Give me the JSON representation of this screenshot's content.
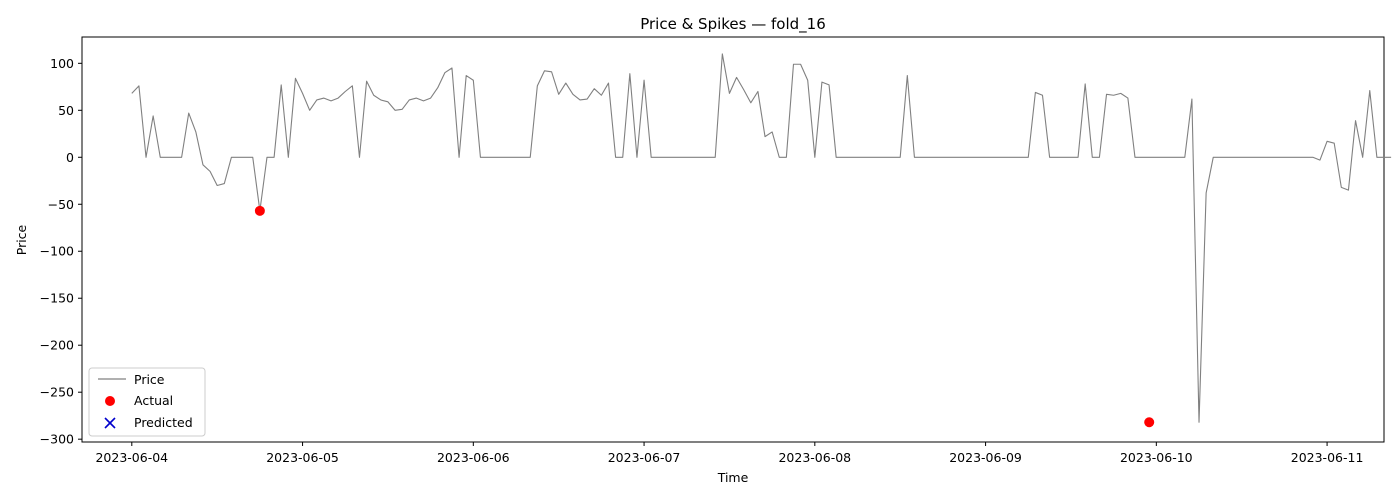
{
  "chart_data": {
    "type": "line",
    "title": "Price & Spikes — fold_16",
    "xlabel": "Time",
    "ylabel": "Price",
    "x_start": "2023-06-04 00:00",
    "x_step_hours": 1,
    "xlim": [
      "2023-06-03 17:00",
      "2023-06-11 08:00"
    ],
    "ylim": [
      -303,
      128
    ],
    "x_ticks": [
      "2023-06-04",
      "2023-06-05",
      "2023-06-06",
      "2023-06-07",
      "2023-06-08",
      "2023-06-09",
      "2023-06-10",
      "2023-06-11"
    ],
    "y_ticks": [
      100,
      50,
      0,
      -50,
      -100,
      -150,
      -200,
      -250,
      -300
    ],
    "grid": false,
    "legend_position": "lower-left",
    "series": [
      {
        "name": "Price",
        "kind": "line",
        "color": "#808080",
        "values": [
          68,
          76,
          0,
          44,
          0,
          0,
          0,
          0,
          47,
          27,
          -8,
          -15,
          -30,
          -28,
          0,
          0,
          0,
          0,
          -57,
          0,
          0,
          77,
          0,
          84,
          68,
          50,
          61,
          63,
          60,
          63,
          70,
          76,
          0,
          81,
          66,
          61,
          59,
          50,
          51,
          61,
          63,
          60,
          63,
          74,
          90,
          95,
          0,
          87,
          82,
          0,
          0,
          0,
          0,
          0,
          0,
          0,
          0,
          76,
          92,
          91,
          67,
          79,
          67,
          61,
          62,
          73,
          66,
          79,
          0,
          0,
          89,
          0,
          82,
          0,
          0,
          0,
          0,
          0,
          0,
          0,
          0,
          0,
          0,
          110,
          68,
          85,
          72,
          58,
          70,
          22,
          27,
          0,
          0,
          99,
          99,
          82,
          0,
          80,
          77,
          0,
          0,
          0,
          0,
          0,
          0,
          0,
          0,
          0,
          0,
          87,
          0,
          0,
          0,
          0,
          0,
          0,
          0,
          0,
          0,
          0,
          0,
          0,
          0,
          0,
          0,
          0,
          0,
          69,
          66,
          0,
          0,
          0,
          0,
          0,
          78,
          0,
          0,
          67,
          66,
          68,
          63,
          0,
          0,
          0,
          0,
          0,
          0,
          0,
          0,
          62,
          -282,
          -38,
          0,
          0,
          0,
          0,
          0,
          0,
          0,
          0,
          0,
          0,
          0,
          0,
          0,
          0,
          0,
          -3,
          17,
          15,
          -32,
          -35,
          39,
          0,
          71,
          0,
          0,
          0
        ]
      },
      {
        "name": "Actual",
        "kind": "scatter",
        "marker": "circle",
        "color": "#ff0000",
        "points": [
          {
            "x": "2023-06-04 18:00",
            "y": -57
          },
          {
            "x": "2023-06-09 23:00",
            "y": -282
          }
        ]
      },
      {
        "name": "Predicted",
        "kind": "scatter",
        "marker": "x",
        "color": "#0000cc",
        "points": []
      }
    ]
  }
}
